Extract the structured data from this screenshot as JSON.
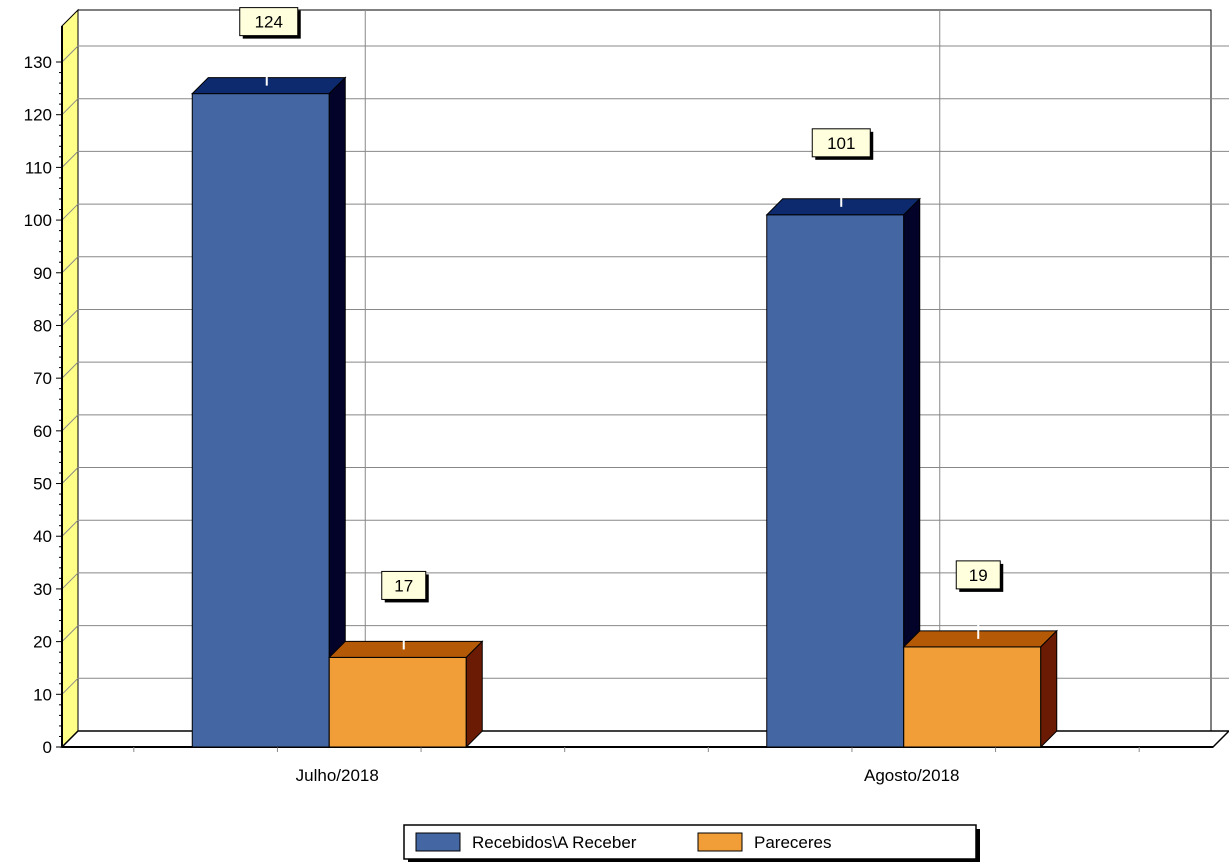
{
  "chart_data": {
    "type": "bar",
    "categories": [
      "Julho/2018",
      "Agosto/2018"
    ],
    "series": [
      {
        "name": "Recebidos\\A Receber",
        "values": [
          124,
          101
        ],
        "color": "#4466a3",
        "top_color": "#0d2a6e",
        "side_color": "#03032a"
      },
      {
        "name": "Pareceres",
        "values": [
          17,
          19
        ],
        "color": "#f19e39",
        "top_color": "#b45a06",
        "side_color": "#6b1b04"
      }
    ],
    "ylim": [
      0,
      130
    ],
    "y_ticks": [
      0,
      10,
      20,
      30,
      40,
      50,
      60,
      70,
      80,
      90,
      100,
      110,
      120,
      130
    ],
    "data_labels": [
      "124",
      "17",
      "101",
      "19"
    ],
    "grid": true,
    "legend_position": "bottom-center",
    "three_d": true,
    "wall_color": "#ffff88",
    "label_box_color": "#ffffdd"
  }
}
